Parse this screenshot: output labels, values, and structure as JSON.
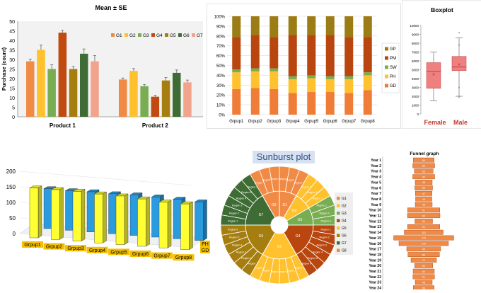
{
  "chart_data": [
    {
      "type": "bar",
      "title": "Mean ± SE",
      "xlabel": "",
      "ylabel": "Purchase (count)",
      "ylim": [
        0,
        50
      ],
      "yticks": [
        0,
        5,
        10,
        15,
        20,
        25,
        30,
        35,
        40,
        45,
        50
      ],
      "groups": [
        "Product 1",
        "Product 2"
      ],
      "series": [
        {
          "name": "G1",
          "color": "#f08a44",
          "values": [
            29,
            19.5
          ],
          "errors": [
            1.2,
            0.8
          ]
        },
        {
          "name": "G2",
          "color": "#ffc12e",
          "values": [
            35,
            24
          ],
          "errors": [
            2.5,
            1.2
          ]
        },
        {
          "name": "G3",
          "color": "#79ad52",
          "values": [
            25,
            16
          ],
          "errors": [
            2.2,
            0.9
          ]
        },
        {
          "name": "G4",
          "color": "#c04a10",
          "values": [
            44,
            10.5
          ],
          "errors": [
            1.2,
            0.8
          ]
        },
        {
          "name": "G5",
          "color": "#a67e10",
          "values": [
            25,
            19
          ],
          "errors": [
            1.3,
            1.5
          ]
        },
        {
          "name": "G6",
          "color": "#3e6c34",
          "values": [
            33,
            23
          ],
          "errors": [
            2.5,
            1.5
          ]
        },
        {
          "name": "G7",
          "color": "#f2a38c",
          "values": [
            29,
            18
          ],
          "errors": [
            3.0,
            1.2
          ]
        }
      ],
      "legend_position": "top-right",
      "grid": false
    },
    {
      "type": "bar",
      "stacked": "percent",
      "categories": [
        "Grpup1",
        "Grpup2",
        "Grpup3",
        "Grpup4",
        "Grpup5",
        "Grpup6",
        "Grpup7",
        "Grpup8"
      ],
      "yticks": [
        "0%",
        "10%",
        "20%",
        "30%",
        "40%",
        "50%",
        "60%",
        "70%",
        "80%",
        "90%",
        "100%"
      ],
      "series": [
        {
          "name": "GD",
          "color": "#ef7d38",
          "values": [
            26,
            27,
            26,
            22,
            23,
            23,
            22,
            25
          ]
        },
        {
          "name": "PH",
          "color": "#ffc12e",
          "values": [
            17,
            17,
            18,
            14,
            14,
            13,
            14,
            15
          ]
        },
        {
          "name": "SW",
          "color": "#79ad52",
          "values": [
            3,
            3,
            3,
            3,
            3,
            3,
            3,
            3
          ]
        },
        {
          "name": "PM",
          "color": "#b8460e",
          "values": [
            33,
            34,
            32,
            42,
            41,
            42,
            40,
            36
          ]
        },
        {
          "name": "GP",
          "color": "#9c7c14",
          "values": [
            21,
            19,
            21,
            19,
            19,
            19,
            21,
            21
          ]
        }
      ],
      "legend_position": "right"
    },
    {
      "type": "box",
      "title": "Boxplot",
      "categories": [
        "Female",
        "Male"
      ],
      "ylim": [
        0,
        10000
      ],
      "yticks": [
        0,
        1000,
        2000,
        3000,
        4000,
        5000,
        6000,
        7000,
        8000,
        9000,
        10000
      ],
      "boxes": [
        {
          "min": 1500,
          "q1": 2900,
          "median": 4800,
          "q3": 5800,
          "max": 7000,
          "mean": 4500,
          "outliers": []
        },
        {
          "min": 2000,
          "q1": 4900,
          "median": 5300,
          "q3": 6500,
          "max": 8600,
          "mean": 5600,
          "outliers": [
            9100,
            7700,
            1800,
            2900
          ]
        }
      ],
      "colors": {
        "box": "#f08080",
        "label": "#c0392b"
      }
    },
    {
      "type": "bar",
      "view": "3d",
      "categories": [
        "Grpup1",
        "Grpup2",
        "Grpup3",
        "Grpup4",
        "Grpup5",
        "Grpup6",
        "Grpup7",
        "Grpup8"
      ],
      "series": [
        {
          "name": "PH",
          "color": "#ffff33",
          "values": [
            160,
            160,
            160,
            157,
            156,
            152,
            147,
            147
          ]
        },
        {
          "name": "GD",
          "color": "#2b9be0",
          "values": [
            128,
            127,
            129,
            128,
            130,
            129,
            127,
            124
          ]
        }
      ],
      "yticks": [
        0,
        50,
        100,
        150,
        200
      ],
      "ylim": [
        0,
        200
      ]
    },
    {
      "type": "sunburst",
      "title": "Sunburst plot",
      "groups": [
        {
          "name": "G1",
          "color": "#f08a44",
          "weight": 1
        },
        {
          "name": "G2",
          "color": "#ffc12e",
          "weight": 1
        },
        {
          "name": "G3",
          "color": "#79ad52",
          "weight": 1
        },
        {
          "name": "G4",
          "color": "#b8460e",
          "weight": 2
        },
        {
          "name": "G5",
          "color": "#ffc12e",
          "weight": 2
        },
        {
          "name": "G6",
          "color": "#a67e10",
          "weight": 2
        },
        {
          "name": "G7",
          "color": "#3e6c34",
          "weight": 2
        },
        {
          "name": "G8",
          "color": "#f08a44",
          "weight": 1
        }
      ],
      "outer_label": "Region",
      "legend": [
        "G1",
        "G2",
        "G3",
        "G4",
        "G5",
        "G6",
        "G7",
        "G8"
      ]
    },
    {
      "type": "bar",
      "orientation": "funnel",
      "title": "Funnel graph",
      "categories": [
        "Year 1",
        "Year 2",
        "Year 3",
        "Year 4",
        "Year 5",
        "Year 6",
        "Year 7",
        "Year 8",
        "Year 9",
        "Year 10",
        "Year 11",
        "Year 12",
        "Year 13",
        "Year 14",
        "Year 15",
        "Year 16",
        "Year 17",
        "Year 18",
        "Year 19",
        "Year 20",
        "Year 21",
        "Year 22",
        "Year 23",
        "Year 24"
      ],
      "values": [
        59,
        62,
        53,
        62,
        48,
        50,
        47,
        46,
        48,
        91,
        92,
        50,
        91,
        110,
        170,
        140,
        96,
        89,
        72,
        51,
        60,
        61,
        48,
        59
      ],
      "color": "#f08a44"
    }
  ]
}
